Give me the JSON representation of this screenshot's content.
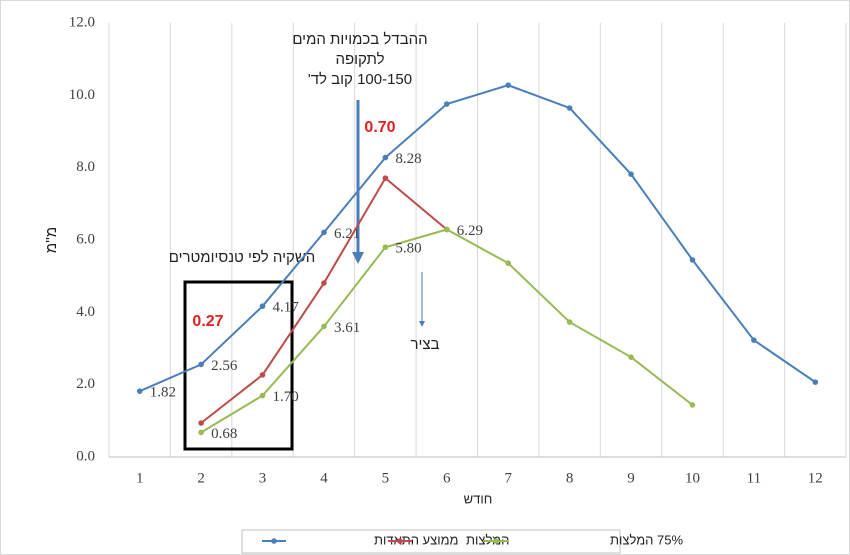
{
  "chart_data": {
    "type": "line",
    "y_label": "מ''מ",
    "x_label": "חודש",
    "categories": [
      "1",
      "2",
      "3",
      "4",
      "5",
      "6",
      "7",
      "8",
      "9",
      "10",
      "11",
      "12"
    ],
    "ylim": [
      0,
      12
    ],
    "yticks": [
      {
        "value": 0,
        "label": "0.0"
      },
      {
        "value": 2,
        "label": "2.0"
      },
      {
        "value": 4,
        "label": "4.0"
      },
      {
        "value": 6,
        "label": "6.0"
      },
      {
        "value": 8,
        "label": "8.0"
      },
      {
        "value": 10,
        "label": "10.0"
      },
      {
        "value": 12,
        "label": "12.0"
      }
    ],
    "grid": "x",
    "legend": "bottom",
    "series": [
      {
        "name": "ממוצע התאדות",
        "color": "#4a7ebb",
        "values": [
          1.82,
          2.56,
          4.17,
          6.21,
          8.28,
          9.76,
          10.28,
          9.65,
          7.82,
          5.45,
          3.23,
          2.07
        ],
        "value_labels": [
          "1.82",
          "2.56",
          "4.17",
          "6.21",
          "8.28",
          null,
          null,
          null,
          null,
          null,
          null,
          null
        ]
      },
      {
        "name": "המלצות",
        "color": "#be4b48",
        "values": [
          null,
          0.94,
          2.27,
          4.81,
          7.71,
          6.29,
          null,
          null,
          null,
          null,
          null,
          null
        ]
      },
      {
        "name": "75% המלצות",
        "color": "#98b954",
        "values": [
          null,
          0.68,
          1.7,
          3.61,
          5.8,
          6.29,
          5.36,
          3.73,
          2.76,
          1.44,
          null,
          null
        ],
        "value_labels": [
          null,
          "0.68",
          "1.70",
          "3.61",
          "5.80",
          "6.29",
          null,
          null,
          null,
          null,
          null,
          null
        ]
      }
    ],
    "annotations": [
      "ההבדל בכמויות המים",
      "לתקופה",
      "100-150 קוב לד'",
      "0.70",
      "0.27",
      "השקיה לפי טנסיומטרים",
      "בציר"
    ]
  }
}
